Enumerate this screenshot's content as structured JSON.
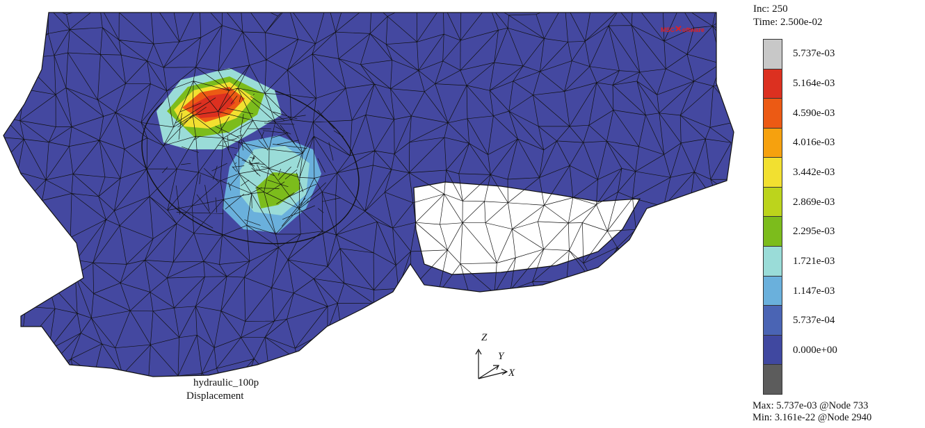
{
  "status": {
    "increment": "Inc: 250",
    "time": "Time: 2.500e-02"
  },
  "legend": {
    "levels": [
      {
        "label": "5.737e-03",
        "color": "#c8c8c8"
      },
      {
        "label": "5.164e-03",
        "color": "#dc3020"
      },
      {
        "label": "4.590e-03",
        "color": "#ec5a14"
      },
      {
        "label": "4.016e-03",
        "color": "#f6a10e"
      },
      {
        "label": "3.442e-03",
        "color": "#f2e030"
      },
      {
        "label": "2.869e-03",
        "color": "#bcd41c"
      },
      {
        "label": "2.295e-03",
        "color": "#7cbc1c"
      },
      {
        "label": "1.721e-03",
        "color": "#9adcd8"
      },
      {
        "label": "1.147e-03",
        "color": "#6ab0dc"
      },
      {
        "label": "5.737e-04",
        "color": "#4a64b4"
      },
      {
        "label": "0.000e+00",
        "color": "#4048a0"
      }
    ],
    "bottom_color": "#5c5c5c",
    "max": "Max: 5.737e-03 @Node 733",
    "min": "Min: 3.161e-22 @Node 2940"
  },
  "job": {
    "name": "hydraulic_100p",
    "quantity": "Displacement"
  },
  "axes": {
    "z": "Z",
    "y": "Y",
    "x": "X"
  },
  "logo": {
    "text_left": "MSC",
    "text_right": "oftware",
    "mark": "✕"
  },
  "colors": {
    "mesh_fill": "#4448a0",
    "mesh_line": "#111111"
  }
}
